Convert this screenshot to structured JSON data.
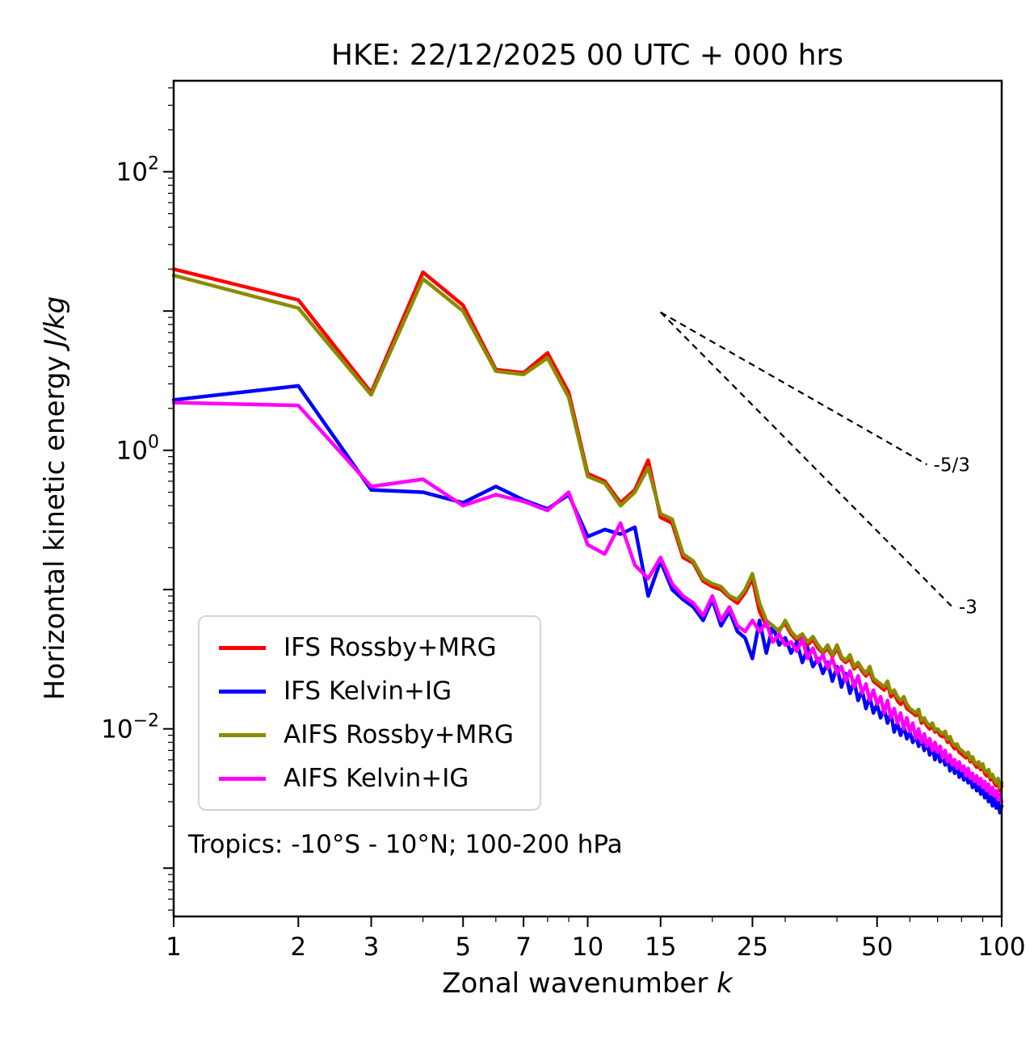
{
  "chart_data": {
    "type": "line",
    "title": "HKE: 22/12/2025 00 UTC + 000 hrs",
    "xlabel": "Zonal wavenumber",
    "xlabel_italic": "k",
    "ylabel": "Horizontal kinetic energy",
    "ylabel_italic": "J/kg",
    "annotation": "Tropics: -10°S - 10°N; 100-200 hPa",
    "x_scale": "log",
    "y_scale": "log",
    "xlim": [
      1,
      100
    ],
    "ylim": [
      0.00045,
      450
    ],
    "x_ticks": [
      1,
      2,
      3,
      5,
      7,
      10,
      15,
      25,
      50,
      100
    ],
    "x_minor_ticks": [
      4,
      6,
      8,
      9,
      20,
      30,
      40,
      60,
      70,
      80,
      90
    ],
    "y_ticks": [
      {
        "base": "10",
        "exp": "2",
        "value": 100
      },
      {
        "base": "10",
        "exp": "0",
        "value": 1
      },
      {
        "base": "10",
        "exp": "−2",
        "value": 0.01
      }
    ],
    "legend_position": "lower left",
    "x": [
      1,
      2,
      3,
      4,
      5,
      6,
      7,
      8,
      9,
      10,
      11,
      12,
      13,
      14,
      15,
      16,
      17,
      18,
      19,
      20,
      21,
      22,
      23,
      24,
      25,
      26,
      27,
      28,
      29,
      30,
      31,
      32,
      33,
      34,
      35,
      36,
      37,
      38,
      39,
      40,
      41,
      42,
      43,
      44,
      45,
      46,
      47,
      48,
      49,
      50,
      51,
      52,
      53,
      54,
      55,
      56,
      57,
      58,
      59,
      60,
      61,
      62,
      63,
      64,
      65,
      66,
      67,
      68,
      69,
      70,
      71,
      72,
      73,
      74,
      75,
      76,
      77,
      78,
      79,
      80,
      81,
      82,
      83,
      84,
      85,
      86,
      87,
      88,
      89,
      90,
      91,
      92,
      93,
      94,
      95,
      96,
      97,
      98,
      99,
      100
    ],
    "series": [
      {
        "key": "ifs-rossby-mrg",
        "name": "IFS Rossby+MRG",
        "color": "#ff0000",
        "values": [
          20,
          12,
          2.6,
          19,
          11,
          3.8,
          3.6,
          5.0,
          2.6,
          0.68,
          0.6,
          0.42,
          0.52,
          0.85,
          0.33,
          0.3,
          0.17,
          0.155,
          0.115,
          0.105,
          0.1,
          0.088,
          0.08,
          0.095,
          0.12,
          0.07,
          0.055,
          0.05,
          0.052,
          0.057,
          0.048,
          0.043,
          0.046,
          0.04,
          0.044,
          0.038,
          0.035,
          0.038,
          0.033,
          0.038,
          0.032,
          0.03,
          0.032,
          0.027,
          0.029,
          0.026,
          0.024,
          0.026,
          0.022,
          0.021,
          0.02,
          0.019,
          0.021,
          0.017,
          0.018,
          0.016,
          0.015,
          0.016,
          0.014,
          0.0135,
          0.013,
          0.0125,
          0.013,
          0.011,
          0.0115,
          0.0105,
          0.01,
          0.0105,
          0.0095,
          0.0097,
          0.009,
          0.0088,
          0.009,
          0.008,
          0.0082,
          0.0076,
          0.0072,
          0.0074,
          0.0068,
          0.0066,
          0.0064,
          0.0062,
          0.0064,
          0.0058,
          0.006,
          0.0056,
          0.0053,
          0.0055,
          0.0051,
          0.0054,
          0.0048,
          0.0046,
          0.0048,
          0.0043,
          0.0045,
          0.0041,
          0.0039,
          0.0042,
          0.0036,
          0.0039
        ]
      },
      {
        "key": "ifs-kelvin-ig",
        "name": "IFS Kelvin+IG",
        "color": "#0000ff",
        "values": [
          2.3,
          2.9,
          0.52,
          0.5,
          0.42,
          0.55,
          0.44,
          0.38,
          0.48,
          0.24,
          0.27,
          0.25,
          0.28,
          0.09,
          0.16,
          0.1,
          0.085,
          0.075,
          0.06,
          0.085,
          0.055,
          0.07,
          0.05,
          0.045,
          0.032,
          0.06,
          0.035,
          0.055,
          0.04,
          0.045,
          0.035,
          0.042,
          0.03,
          0.038,
          0.028,
          0.032,
          0.025,
          0.03,
          0.022,
          0.028,
          0.02,
          0.025,
          0.018,
          0.022,
          0.016,
          0.019,
          0.014,
          0.017,
          0.013,
          0.015,
          0.012,
          0.014,
          0.011,
          0.013,
          0.0095,
          0.011,
          0.009,
          0.0105,
          0.0085,
          0.0095,
          0.008,
          0.009,
          0.0075,
          0.0085,
          0.007,
          0.008,
          0.0065,
          0.0075,
          0.006,
          0.007,
          0.0058,
          0.0065,
          0.0055,
          0.0062,
          0.005,
          0.0058,
          0.0048,
          0.0055,
          0.0045,
          0.005,
          0.0043,
          0.0048,
          0.0041,
          0.0046,
          0.0038,
          0.0043,
          0.0036,
          0.004,
          0.0034,
          0.0038,
          0.0032,
          0.0036,
          0.003,
          0.0034,
          0.0028,
          0.0032,
          0.0027,
          0.003,
          0.0025,
          0.0028
        ]
      },
      {
        "key": "aifs-rossby-mrg",
        "name": "AIFS Rossby+MRG",
        "color": "#8b8b00",
        "values": [
          18,
          10.5,
          2.5,
          17,
          10,
          3.7,
          3.5,
          4.6,
          2.4,
          0.65,
          0.58,
          0.4,
          0.5,
          0.75,
          0.35,
          0.32,
          0.18,
          0.16,
          0.12,
          0.11,
          0.105,
          0.09,
          0.085,
          0.1,
          0.13,
          0.08,
          0.06,
          0.055,
          0.05,
          0.06,
          0.05,
          0.045,
          0.048,
          0.042,
          0.046,
          0.04,
          0.036,
          0.04,
          0.034,
          0.04,
          0.033,
          0.031,
          0.034,
          0.028,
          0.03,
          0.027,
          0.025,
          0.028,
          0.023,
          0.022,
          0.021,
          0.02,
          0.022,
          0.018,
          0.019,
          0.017,
          0.016,
          0.017,
          0.015,
          0.014,
          0.0135,
          0.013,
          0.0138,
          0.0115,
          0.012,
          0.011,
          0.0105,
          0.011,
          0.0098,
          0.01,
          0.0095,
          0.0092,
          0.0096,
          0.0084,
          0.0088,
          0.008,
          0.0076,
          0.0078,
          0.0072,
          0.007,
          0.0068,
          0.0065,
          0.0068,
          0.006,
          0.0063,
          0.0058,
          0.0056,
          0.0058,
          0.0053,
          0.0056,
          0.005,
          0.0049,
          0.0051,
          0.0045,
          0.0047,
          0.0043,
          0.0041,
          0.0044,
          0.0038,
          0.0041
        ]
      },
      {
        "key": "aifs-kelvin-ig",
        "name": "AIFS Kelvin+IG",
        "color": "#ff00ff",
        "values": [
          2.2,
          2.1,
          0.55,
          0.62,
          0.4,
          0.48,
          0.43,
          0.37,
          0.5,
          0.21,
          0.18,
          0.3,
          0.15,
          0.12,
          0.17,
          0.11,
          0.09,
          0.08,
          0.065,
          0.09,
          0.06,
          0.075,
          0.055,
          0.05,
          0.06,
          0.05,
          0.058,
          0.042,
          0.048,
          0.04,
          0.042,
          0.036,
          0.044,
          0.032,
          0.038,
          0.03,
          0.034,
          0.027,
          0.032,
          0.025,
          0.028,
          0.022,
          0.026,
          0.02,
          0.024,
          0.018,
          0.021,
          0.016,
          0.019,
          0.015,
          0.017,
          0.013,
          0.016,
          0.012,
          0.014,
          0.011,
          0.013,
          0.01,
          0.012,
          0.0095,
          0.011,
          0.0085,
          0.01,
          0.008,
          0.0092,
          0.0075,
          0.0085,
          0.007,
          0.008,
          0.0068,
          0.0075,
          0.0062,
          0.007,
          0.0058,
          0.0065,
          0.0055,
          0.006,
          0.0052,
          0.0058,
          0.005,
          0.0054,
          0.0046,
          0.0052,
          0.0044,
          0.0048,
          0.0042,
          0.0046,
          0.004,
          0.0044,
          0.0038,
          0.0042,
          0.0036,
          0.004,
          0.0034,
          0.0038,
          0.0033,
          0.0036,
          0.0031,
          0.0034,
          0.003
        ]
      }
    ],
    "reference_lines": [
      {
        "label": "-5/3",
        "x": [
          15,
          66
        ],
        "y": [
          9.8,
          0.79
        ]
      },
      {
        "label": "-3",
        "x": [
          15,
          76
        ],
        "y": [
          9.8,
          0.075
        ]
      }
    ]
  }
}
